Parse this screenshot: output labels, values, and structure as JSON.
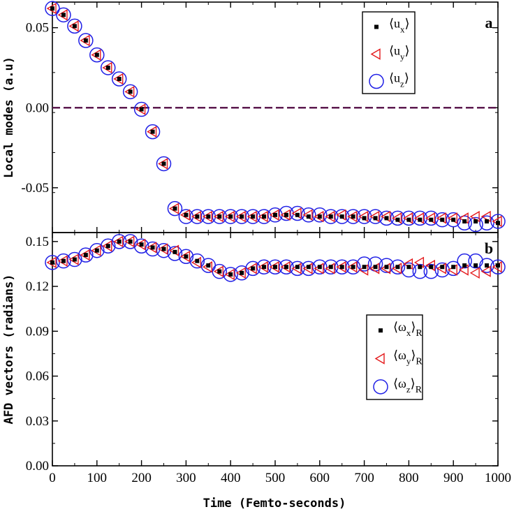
{
  "colors": {
    "x": "#000000",
    "y": "#e41a1c",
    "z": "#1f1fe6",
    "zero_line": "#5c1a4e"
  },
  "chart_data": [
    {
      "type": "scatter",
      "panel_label": "a",
      "ylabel": "Local modes (a.u)",
      "xlim": [
        0,
        1000
      ],
      "ylim": [
        -0.078,
        0.066
      ],
      "yticks": [
        0.05,
        0.0,
        -0.05
      ],
      "ytick_labels": [
        "0.05",
        "0.00",
        "-0.05"
      ],
      "reference_line": 0.0,
      "legend": {
        "position": "top-right",
        "entries": [
          {
            "base": "⟨u",
            "sub": "x",
            "close": "⟩",
            "post": ""
          },
          {
            "base": "⟨u",
            "sub": "y",
            "close": "⟩",
            "post": ""
          },
          {
            "base": "⟨u",
            "sub": "z",
            "close": "⟩",
            "post": ""
          }
        ]
      },
      "x": [
        0,
        25,
        50,
        75,
        100,
        125,
        150,
        175,
        200,
        225,
        250,
        275,
        300,
        325,
        350,
        375,
        400,
        425,
        450,
        475,
        500,
        525,
        550,
        575,
        600,
        625,
        650,
        675,
        700,
        725,
        750,
        775,
        800,
        825,
        850,
        875,
        900,
        925,
        950,
        975,
        1000
      ],
      "series": [
        {
          "name": "ux",
          "marker": "square",
          "values": [
            0.062,
            0.058,
            0.051,
            0.042,
            0.033,
            0.025,
            0.018,
            0.01,
            -0.001,
            -0.015,
            -0.035,
            -0.063,
            -0.067,
            -0.068,
            -0.068,
            -0.068,
            -0.068,
            -0.068,
            -0.068,
            -0.068,
            -0.067,
            -0.067,
            -0.067,
            -0.068,
            -0.068,
            -0.068,
            -0.068,
            -0.068,
            -0.069,
            -0.069,
            -0.069,
            -0.07,
            -0.07,
            -0.07,
            -0.07,
            -0.07,
            -0.07,
            -0.071,
            -0.071,
            -0.071,
            -0.072
          ]
        },
        {
          "name": "uy",
          "marker": "triangle-left",
          "values": [
            0.062,
            0.058,
            0.051,
            0.042,
            0.033,
            0.025,
            0.018,
            0.01,
            -0.001,
            -0.015,
            -0.035,
            -0.063,
            -0.067,
            -0.068,
            -0.068,
            -0.068,
            -0.068,
            -0.068,
            -0.068,
            -0.068,
            -0.067,
            -0.067,
            -0.066,
            -0.067,
            -0.068,
            -0.068,
            -0.067,
            -0.068,
            -0.068,
            -0.068,
            -0.068,
            -0.069,
            -0.069,
            -0.069,
            -0.069,
            -0.069,
            -0.069,
            -0.069,
            -0.068,
            -0.068,
            -0.071
          ]
        },
        {
          "name": "uz",
          "marker": "circle",
          "values": [
            0.062,
            0.058,
            0.051,
            0.042,
            0.033,
            0.025,
            0.018,
            0.01,
            -0.001,
            -0.015,
            -0.035,
            -0.063,
            -0.068,
            -0.068,
            -0.068,
            -0.068,
            -0.068,
            -0.068,
            -0.068,
            -0.068,
            -0.067,
            -0.066,
            -0.066,
            -0.067,
            -0.067,
            -0.068,
            -0.068,
            -0.068,
            -0.068,
            -0.068,
            -0.069,
            -0.069,
            -0.069,
            -0.069,
            -0.069,
            -0.07,
            -0.07,
            -0.072,
            -0.073,
            -0.072,
            -0.071
          ]
        }
      ]
    },
    {
      "type": "scatter",
      "panel_label": "b",
      "ylabel": "AFD vectors (radians)",
      "xlabel": "Time (Femto-seconds)",
      "xlim": [
        0,
        1000
      ],
      "ylim": [
        0.0,
        0.156
      ],
      "yticks": [
        0.15,
        0.12,
        0.09,
        0.06,
        0.03,
        0.0
      ],
      "ytick_labels": [
        "0.15",
        "0.12",
        "0.09",
        "0.06",
        "0.03",
        "0.00"
      ],
      "xticks": [
        0,
        100,
        200,
        300,
        400,
        500,
        600,
        700,
        800,
        900,
        1000
      ],
      "xtick_labels": [
        "0",
        "100",
        "200",
        "300",
        "400",
        "500",
        "600",
        "700",
        "800",
        "900",
        "1000"
      ],
      "legend": {
        "position": "center-right",
        "entries": [
          {
            "base": "⟨ω",
            "sub": "x",
            "close": "⟩",
            "post": "R"
          },
          {
            "base": "⟨ω",
            "sub": "y",
            "close": "⟩",
            "post": "R"
          },
          {
            "base": "⟨ω",
            "sub": "z",
            "close": "⟩",
            "post": "R"
          }
        ]
      },
      "x": [
        0,
        25,
        50,
        75,
        100,
        125,
        150,
        175,
        200,
        225,
        250,
        275,
        300,
        325,
        350,
        375,
        400,
        425,
        450,
        475,
        500,
        525,
        550,
        575,
        600,
        625,
        650,
        675,
        700,
        725,
        750,
        775,
        800,
        825,
        850,
        875,
        900,
        925,
        950,
        975,
        1000
      ],
      "series": [
        {
          "name": "wx",
          "marker": "square",
          "values": [
            0.136,
            0.137,
            0.138,
            0.141,
            0.144,
            0.147,
            0.15,
            0.15,
            0.148,
            0.146,
            0.145,
            0.143,
            0.14,
            0.137,
            0.134,
            0.13,
            0.128,
            0.129,
            0.132,
            0.133,
            0.133,
            0.133,
            0.133,
            0.133,
            0.133,
            0.133,
            0.133,
            0.133,
            0.133,
            0.133,
            0.133,
            0.133,
            0.133,
            0.133,
            0.133,
            0.133,
            0.133,
            0.134,
            0.134,
            0.134,
            0.134
          ]
        },
        {
          "name": "wy",
          "marker": "triangle-left",
          "values": [
            0.136,
            0.137,
            0.138,
            0.141,
            0.144,
            0.147,
            0.15,
            0.15,
            0.148,
            0.146,
            0.145,
            0.144,
            0.14,
            0.136,
            0.133,
            0.13,
            0.128,
            0.129,
            0.132,
            0.133,
            0.133,
            0.133,
            0.132,
            0.132,
            0.132,
            0.132,
            0.133,
            0.133,
            0.131,
            0.132,
            0.132,
            0.132,
            0.135,
            0.136,
            0.134,
            0.132,
            0.131,
            0.131,
            0.129,
            0.13,
            0.133
          ]
        },
        {
          "name": "wz",
          "marker": "circle",
          "values": [
            0.136,
            0.137,
            0.138,
            0.141,
            0.144,
            0.147,
            0.15,
            0.15,
            0.147,
            0.145,
            0.144,
            0.142,
            0.14,
            0.137,
            0.134,
            0.13,
            0.128,
            0.129,
            0.132,
            0.133,
            0.133,
            0.133,
            0.132,
            0.132,
            0.133,
            0.133,
            0.133,
            0.133,
            0.135,
            0.135,
            0.134,
            0.133,
            0.131,
            0.13,
            0.13,
            0.131,
            0.132,
            0.137,
            0.137,
            0.134,
            0.133
          ]
        }
      ]
    }
  ]
}
